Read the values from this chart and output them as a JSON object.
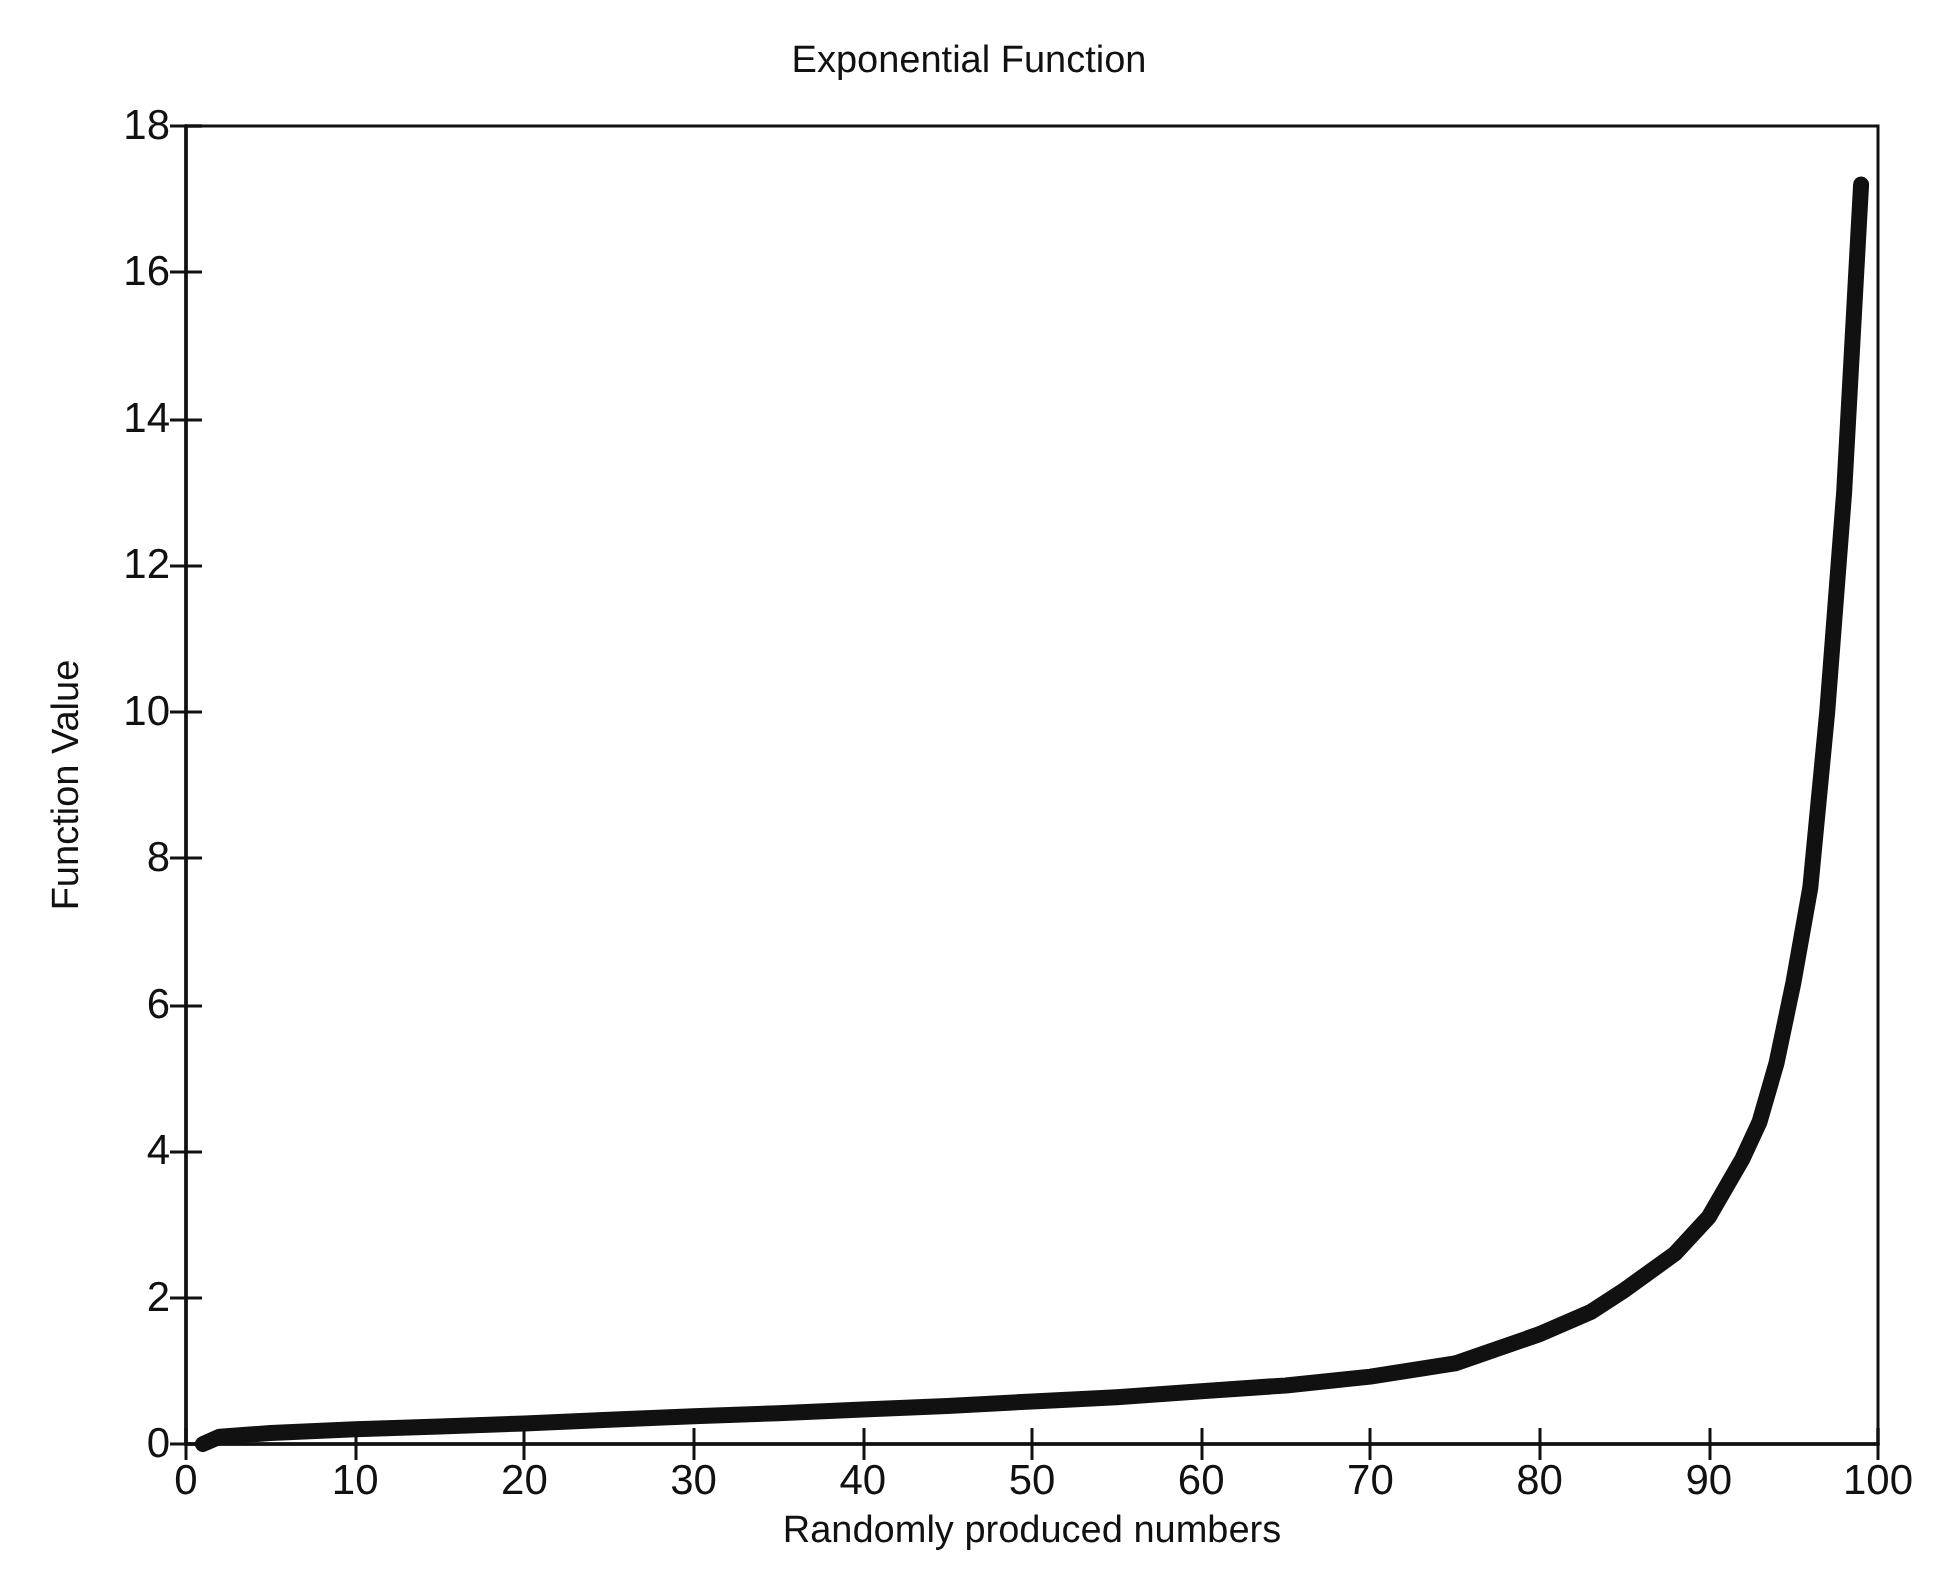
{
  "chart_data": {
    "type": "line",
    "title": "Exponential Function",
    "xlabel": "Randomly produced numbers",
    "ylabel": "Function Value",
    "x": [
      1,
      2,
      5,
      10,
      15,
      20,
      25,
      30,
      35,
      40,
      45,
      50,
      55,
      60,
      65,
      70,
      75,
      80,
      83,
      85,
      88,
      90,
      92,
      93,
      94,
      95,
      96,
      97,
      98,
      99
    ],
    "series": [
      {
        "color": "#111111",
        "values": [
          0,
          0.1,
          0.15,
          0.2,
          0.24,
          0.28,
          0.33,
          0.38,
          0.42,
          0.47,
          0.52,
          0.58,
          0.64,
          0.72,
          0.8,
          0.92,
          1.1,
          1.5,
          1.8,
          2.1,
          2.6,
          3.1,
          3.9,
          4.4,
          5.2,
          6.3,
          7.6,
          10,
          13,
          17.2
        ]
      }
    ],
    "xlim": [
      0,
      100
    ],
    "xticks": [
      0,
      10,
      20,
      30,
      40,
      50,
      60,
      70,
      80,
      90,
      100
    ],
    "ylim": [
      0,
      18
    ],
    "yticks": [
      0,
      2,
      4,
      6,
      8,
      10,
      12,
      14,
      16,
      18
    ],
    "grid": false,
    "line_style": "solid"
  }
}
